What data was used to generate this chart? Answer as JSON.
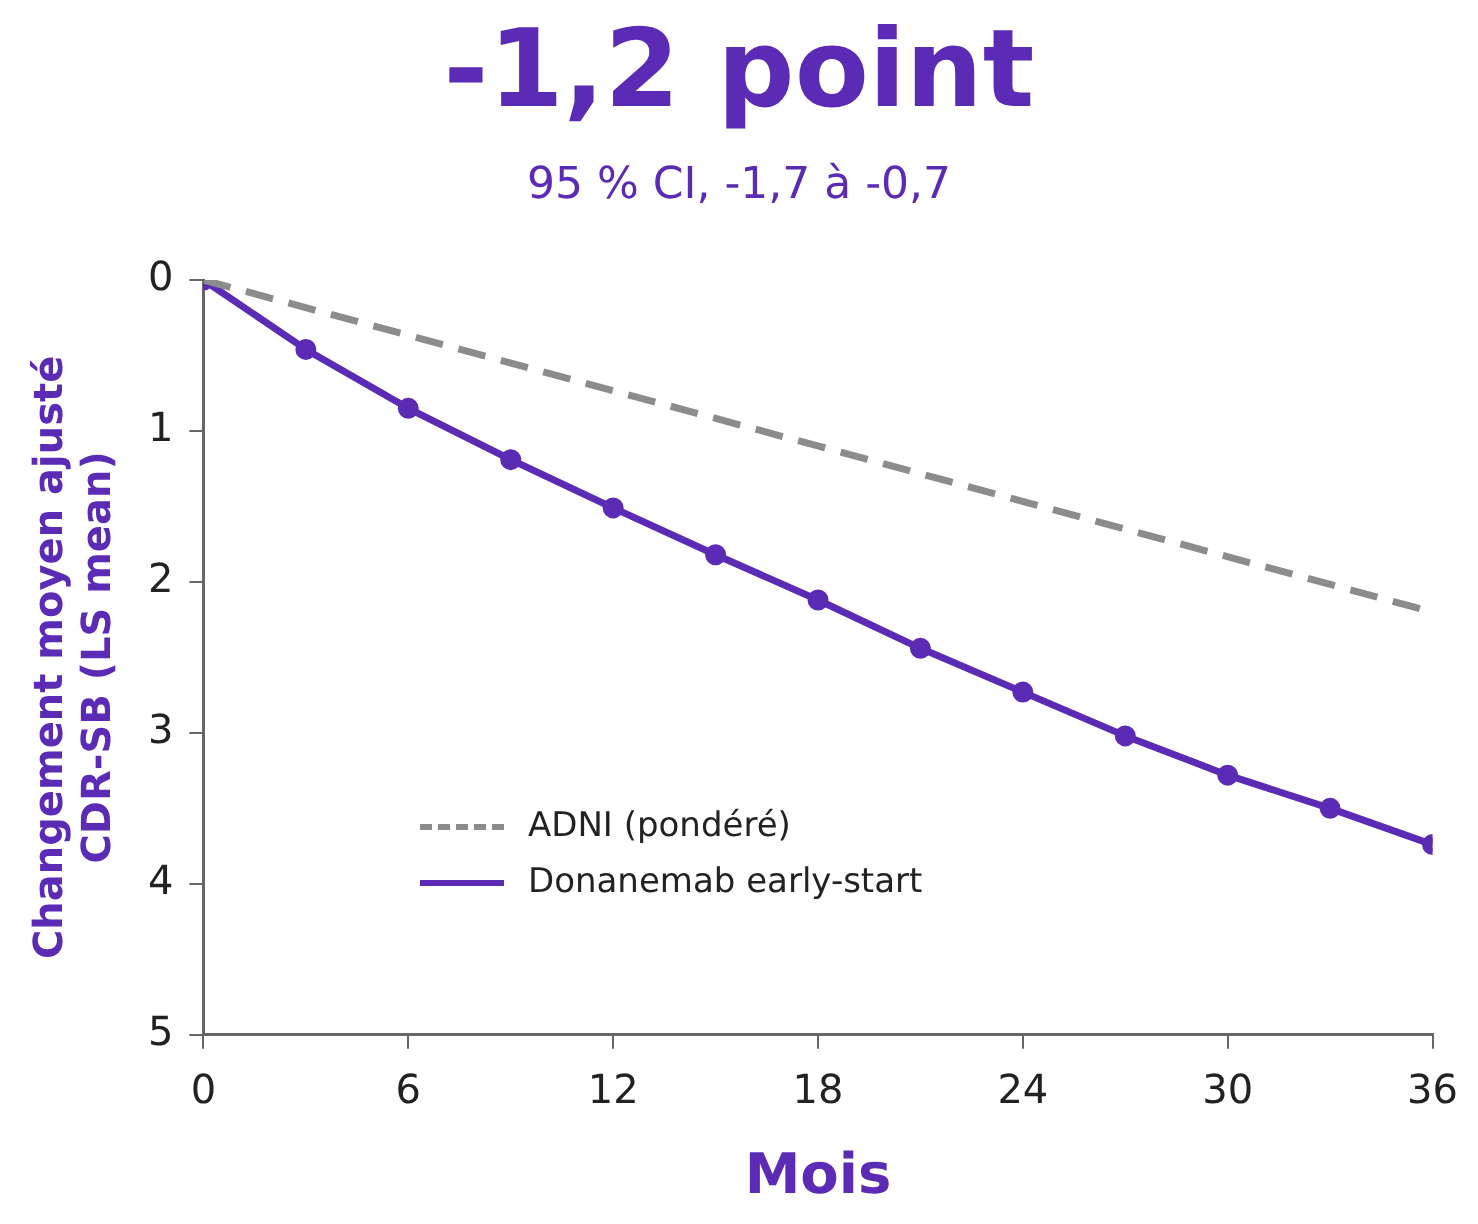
{
  "chart_data": {
    "type": "line",
    "title": "-1,2 point",
    "subtitle": "95 % CI, -1,7 à -0,7",
    "xlabel": "Mois",
    "ylabel": "Changement moyen ajusté\nCDR-SB (LS mean)",
    "xlim": [
      0,
      36
    ],
    "xticks": [
      0,
      6,
      12,
      18,
      24,
      30,
      36
    ],
    "ylim": [
      5,
      0
    ],
    "yticks": [
      0,
      1,
      2,
      3,
      4,
      5
    ],
    "grid": false,
    "legend": "bottom left",
    "series": [
      {
        "name": "ADNI (pondéré)",
        "color": "#8c8c8c",
        "line_style": "dashed",
        "marker": "none",
        "x": [
          0,
          36
        ],
        "values": [
          0,
          2.2
        ]
      },
      {
        "name": "Donanemab early-start",
        "color": "#5b2bb5",
        "line_style": "solid",
        "marker": "circle",
        "x": [
          0,
          3,
          6,
          9,
          12,
          15,
          18,
          21,
          24,
          27,
          30,
          33,
          36
        ],
        "values": [
          0,
          0.46,
          0.85,
          1.19,
          1.51,
          1.82,
          2.12,
          2.44,
          2.73,
          3.02,
          3.28,
          3.5,
          3.74
        ]
      }
    ]
  }
}
